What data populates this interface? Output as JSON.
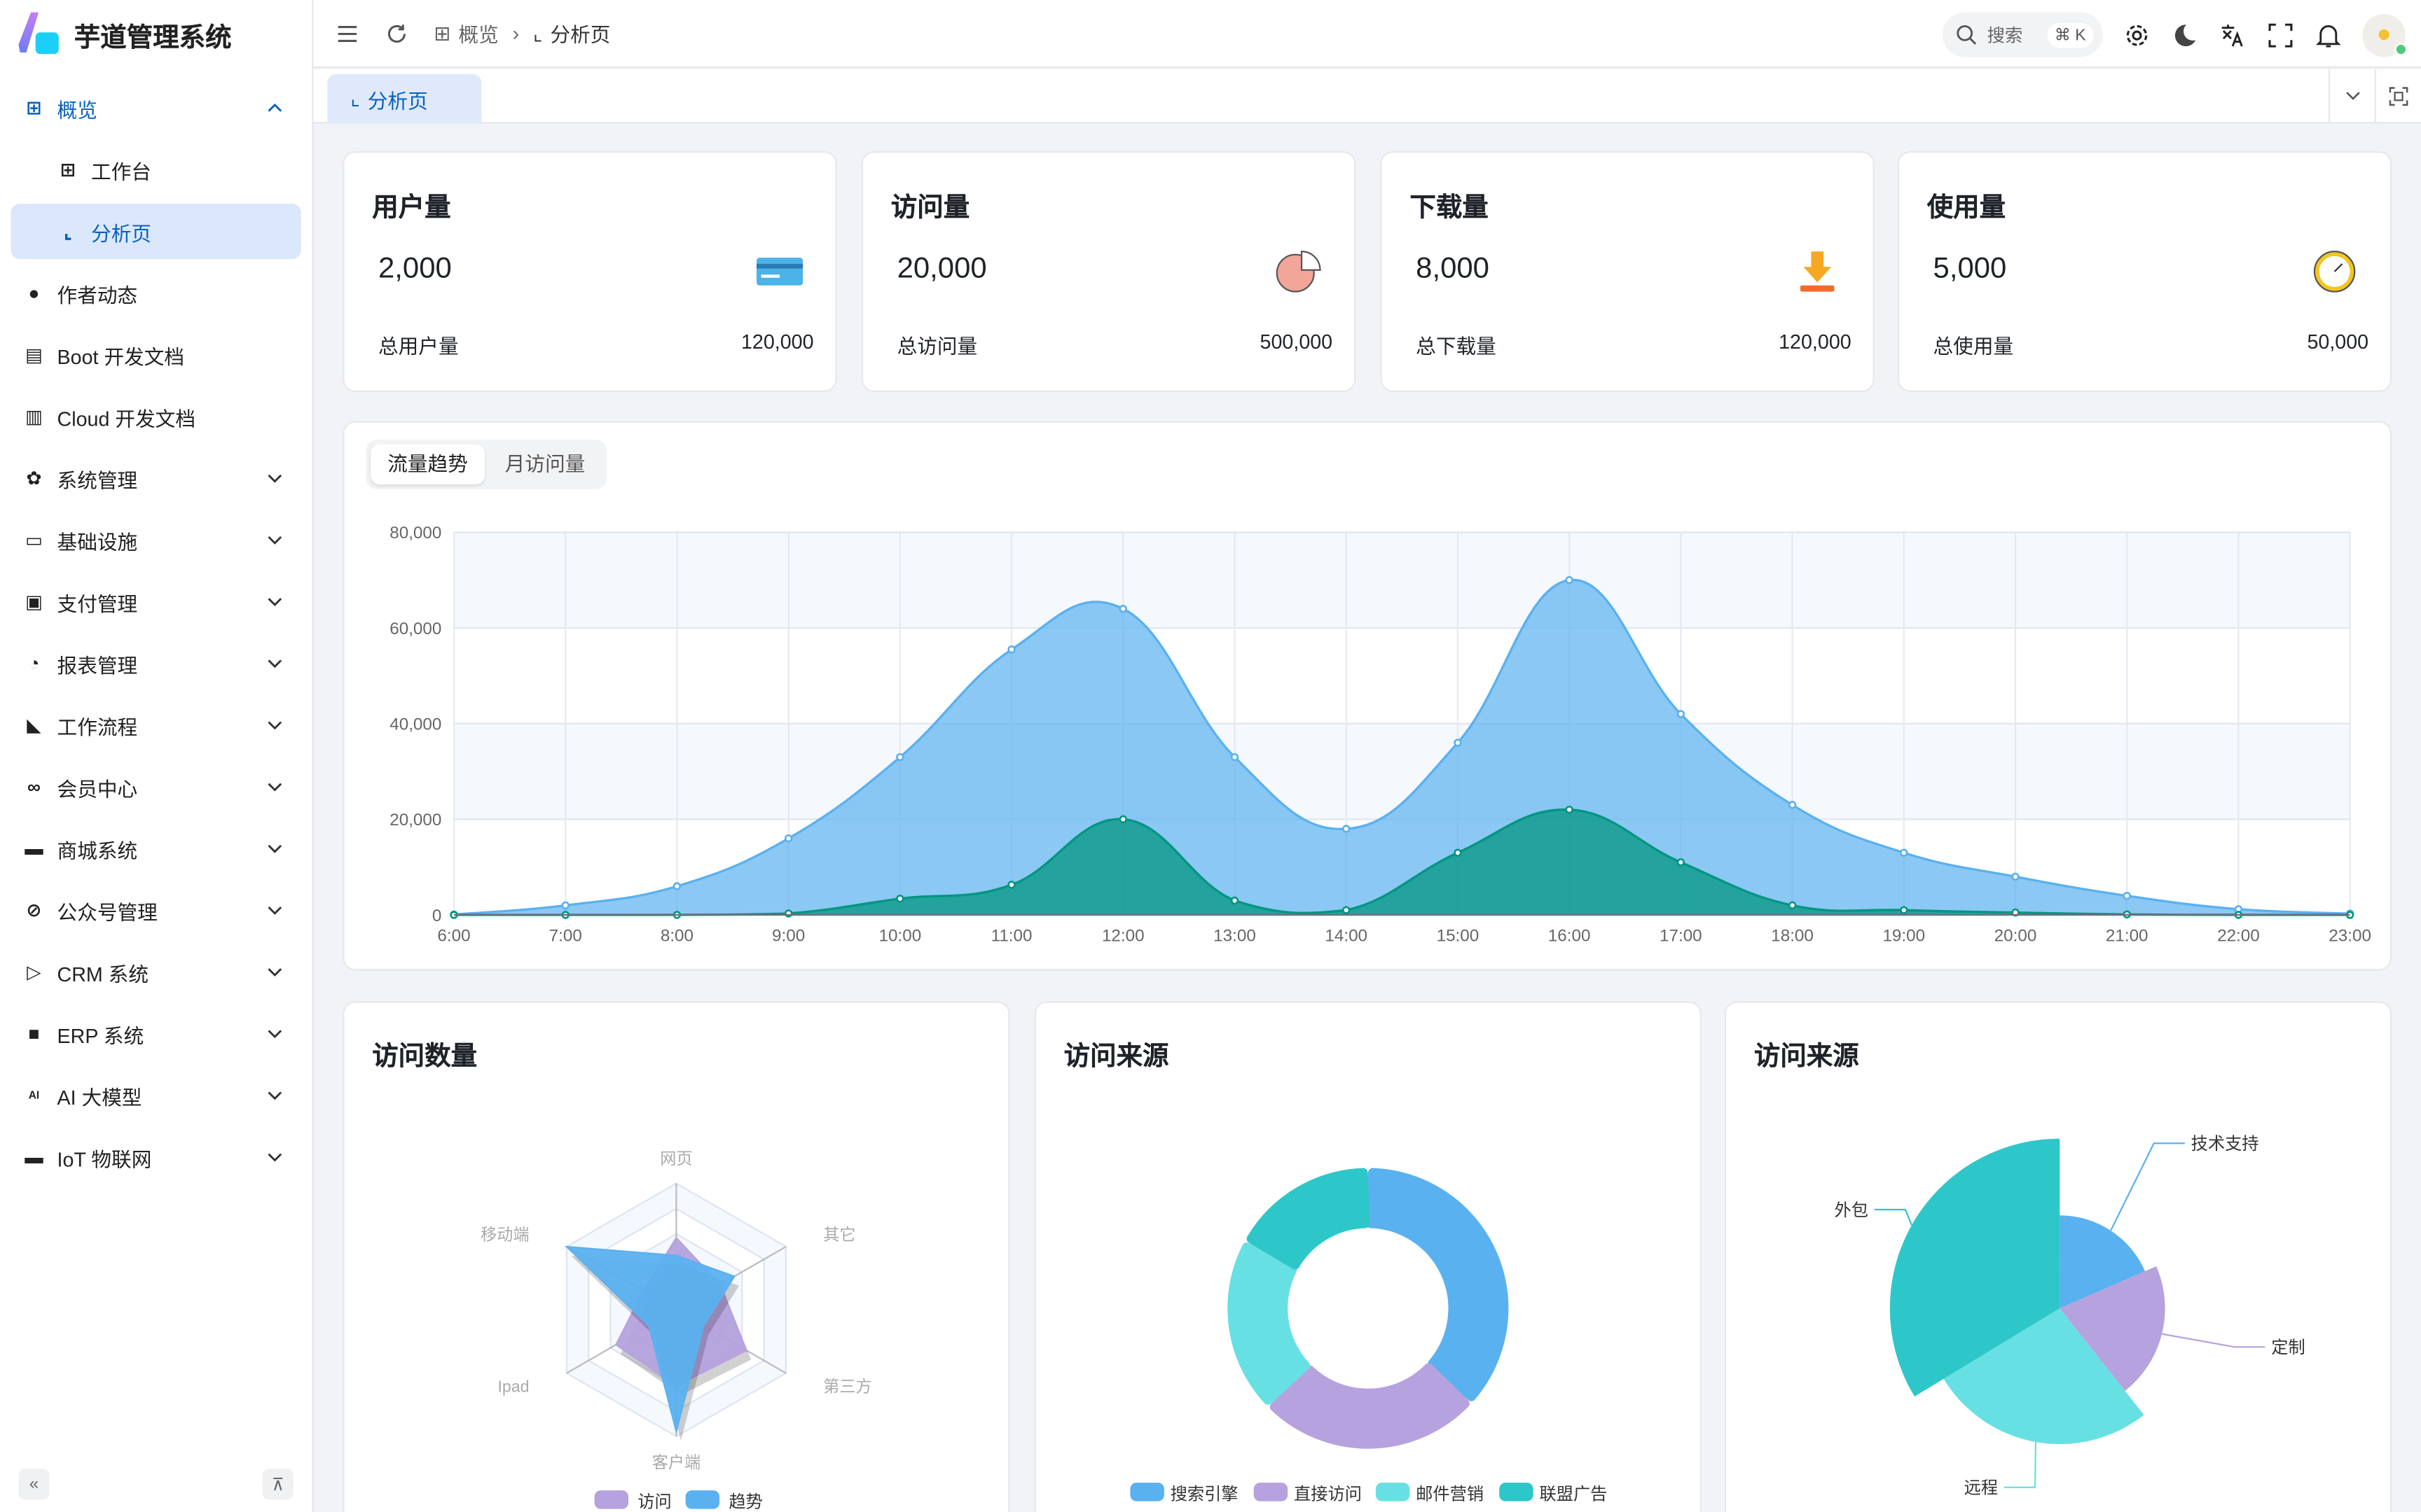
{
  "app": {
    "title": "芋道管理系统"
  },
  "sidebar": {
    "items": [
      {
        "label": "概览",
        "icon": "grid-icon",
        "state": "open"
      },
      {
        "label": "工作台",
        "icon": "grid-icon",
        "sub": true
      },
      {
        "label": "分析页",
        "icon": "chart-icon",
        "sub": true,
        "active": true
      },
      {
        "label": "作者动态",
        "icon": "user-icon"
      },
      {
        "label": "Boot 开发文档",
        "icon": "document-icon"
      },
      {
        "label": "Cloud 开发文档",
        "icon": "documents-icon"
      },
      {
        "label": "系统管理",
        "icon": "gear-icon",
        "expandable": true
      },
      {
        "label": "基础设施",
        "icon": "monitor-icon",
        "expandable": true
      },
      {
        "label": "支付管理",
        "icon": "payment-icon",
        "expandable": true
      },
      {
        "label": "报表管理",
        "icon": "pie-icon",
        "expandable": true
      },
      {
        "label": "工作流程",
        "icon": "workflow-icon",
        "expandable": true
      },
      {
        "label": "会员中心",
        "icon": "bicycle-icon",
        "expandable": true
      },
      {
        "label": "商城系统",
        "icon": "shop-icon",
        "expandable": true
      },
      {
        "label": "公众号管理",
        "icon": "compass-icon",
        "expandable": true
      },
      {
        "label": "CRM 系统",
        "icon": "crm-icon",
        "expandable": true
      },
      {
        "label": "ERP 系统",
        "icon": "erp-icon",
        "expandable": true
      },
      {
        "label": "AI 大模型",
        "icon": "ai-icon",
        "expandable": true
      },
      {
        "label": "IoT 物联网",
        "icon": "iot-icon",
        "expandable": true
      }
    ]
  },
  "header": {
    "breadcrumb": [
      "概览",
      "分析页"
    ],
    "search_placeholder": "搜索",
    "search_shortcut": "⌘ K"
  },
  "tabs": [
    {
      "label": "分析页"
    }
  ],
  "stats": [
    {
      "title": "用户量",
      "value": "2,000",
      "footer_label": "总用户量",
      "footer_value": "120,000",
      "icon": "card-icon"
    },
    {
      "title": "访问量",
      "value": "20,000",
      "footer_label": "总访问量",
      "footer_value": "500,000",
      "icon": "pie-chart-icon"
    },
    {
      "title": "下载量",
      "value": "8,000",
      "footer_label": "总下载量",
      "footer_value": "120,000",
      "icon": "download-icon"
    },
    {
      "title": "使用量",
      "value": "5,000",
      "footer_label": "总使用量",
      "footer_value": "50,000",
      "icon": "clock-icon"
    }
  ],
  "trend_tabs": [
    "流量趋势",
    "月访问量"
  ],
  "colors": {
    "blue": "#5ab1ef",
    "green": "#019680",
    "purple": "#b6a2de",
    "cyan": "#67e0e3",
    "teal": "#2ec7c9",
    "accent": "#0960bd"
  },
  "chart_data": [
    {
      "type": "area",
      "x": [
        "6:00",
        "7:00",
        "8:00",
        "9:00",
        "10:00",
        "11:00",
        "12:00",
        "13:00",
        "14:00",
        "15:00",
        "16:00",
        "17:00",
        "18:00",
        "19:00",
        "20:00",
        "21:00",
        "22:00",
        "23:00"
      ],
      "ylim": [
        0,
        80000
      ],
      "yticks": [
        "0",
        "20,000",
        "40,000",
        "60,000",
        "80,000"
      ],
      "grid": true,
      "series": [
        {
          "values": [
            100,
            2000,
            6000,
            16000,
            33000,
            55500,
            64000,
            33000,
            18000,
            36000,
            70000,
            42000,
            23000,
            13000,
            8000,
            4000,
            1200,
            280
          ],
          "color": "#5ab1ef"
        },
        {
          "values": [
            1,
            2,
            10,
            300,
            3400,
            6300,
            20000,
            3000,
            1000,
            13000,
            22000,
            11000,
            2000,
            1000,
            500,
            100,
            10,
            0
          ],
          "color": "#019680"
        }
      ]
    },
    {
      "type": "radar",
      "title": "访问数量",
      "indicators": [
        "网页",
        "其它",
        "第三方",
        "客户端",
        "Ipad",
        "移动端"
      ],
      "max": 100,
      "series": [
        {
          "name": "访问",
          "values": [
            57,
            40,
            64,
            60,
            55,
            30
          ],
          "color": "#b6a2de"
        },
        {
          "name": "趋势",
          "values": [
            43,
            53,
            25,
            96,
            25,
            100
          ],
          "color": "#5ab1ef"
        }
      ],
      "legend": "bottom"
    },
    {
      "type": "pie",
      "title": "访问来源",
      "donut": true,
      "categories": [
        "搜索引擎",
        "直接访问",
        "邮件营销",
        "联盟广告"
      ],
      "values": [
        1048,
        735,
        580,
        484
      ],
      "colors": [
        "#5ab1ef",
        "#b6a2de",
        "#67e0e3",
        "#2ec7c9"
      ],
      "legend": "bottom"
    },
    {
      "type": "pie",
      "title": "访问来源",
      "rose": true,
      "categories": [
        "技术支持",
        "定制",
        "远程",
        "外包"
      ],
      "values": [
        274,
        310,
        400,
        500
      ],
      "colors": [
        "#5ab1ef",
        "#b6a2de",
        "#67e0e3",
        "#2ec7c9"
      ]
    }
  ]
}
